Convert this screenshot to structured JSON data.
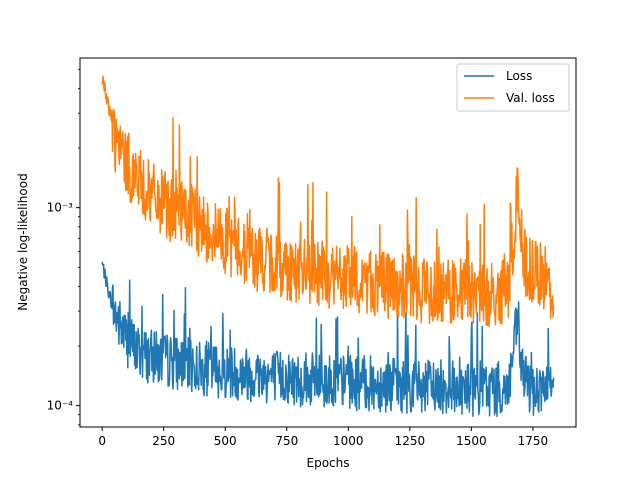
{
  "chart_data": {
    "type": "line",
    "title": "",
    "xlabel": "Epochs",
    "ylabel": "Negative log-likelihood",
    "xlim": [
      -90,
      1925
    ],
    "ylim": [
      7.8e-05,
      0.0057
    ],
    "yscale": "log",
    "grid": false,
    "legend_placement": "top-right",
    "x_ticks": [
      {
        "value": 0,
        "label": "0"
      },
      {
        "value": 250,
        "label": "250"
      },
      {
        "value": 500,
        "label": "500"
      },
      {
        "value": 750,
        "label": "750"
      },
      {
        "value": 1000,
        "label": "1000"
      },
      {
        "value": 1250,
        "label": "1250"
      },
      {
        "value": 1500,
        "label": "1500"
      },
      {
        "value": 1750,
        "label": "1750"
      }
    ],
    "y_ticks": [
      {
        "value": 0.0001,
        "label": "10⁻⁴"
      },
      {
        "value": 0.001,
        "label": "10⁻³"
      }
    ],
    "series": [
      {
        "name": "Loss",
        "color": "#1f77b4",
        "x": [
          0,
          25,
          50,
          75,
          100,
          150,
          200,
          250,
          300,
          350,
          400,
          450,
          500,
          550,
          600,
          650,
          700,
          750,
          800,
          850,
          900,
          950,
          1000,
          1050,
          1100,
          1150,
          1200,
          1250,
          1300,
          1350,
          1400,
          1450,
          1500,
          1550,
          1600,
          1650,
          1690,
          1700,
          1720,
          1750,
          1800,
          1835
        ],
        "y": [
          0.00052,
          0.00038,
          0.00029,
          0.00024,
          0.00021,
          0.00018,
          0.00017,
          0.000165,
          0.00016,
          0.000155,
          0.00015,
          0.000148,
          0.000145,
          0.000142,
          0.00014,
          0.000138,
          0.000136,
          0.000134,
          0.000132,
          0.00013,
          0.000129,
          0.000128,
          0.000127,
          0.000126,
          0.000125,
          0.000124,
          0.000123,
          0.000122,
          0.000121,
          0.00012,
          0.00012,
          0.000119,
          0.000118,
          0.000118,
          0.000117,
          0.000117,
          0.00027,
          0.00016,
          0.000125,
          0.000118,
          0.000115,
          0.000112
        ],
        "noise": 0.28
      },
      {
        "name": "Val. loss",
        "color": "#ff7f0e",
        "x": [
          0,
          25,
          50,
          75,
          100,
          150,
          200,
          250,
          300,
          350,
          400,
          450,
          500,
          550,
          600,
          650,
          700,
          750,
          800,
          850,
          900,
          950,
          1000,
          1050,
          1100,
          1150,
          1200,
          1250,
          1300,
          1350,
          1400,
          1450,
          1500,
          1550,
          1600,
          1650,
          1690,
          1700,
          1720,
          1750,
          1800,
          1835
        ],
        "y": [
          0.0045,
          0.0033,
          0.0022,
          0.0018,
          0.0016,
          0.0013,
          0.0011,
          0.001,
          0.00092,
          0.00085,
          0.00078,
          0.00072,
          0.00066,
          0.0006,
          0.00055,
          0.00052,
          0.0005,
          0.00048,
          0.00046,
          0.00045,
          0.00044,
          0.00043,
          0.00042,
          0.00041,
          0.0004,
          0.00039,
          0.00038,
          0.00038,
          0.00037,
          0.00037,
          0.00036,
          0.00036,
          0.00036,
          0.00035,
          0.00035,
          0.00036,
          0.0012,
          0.0007,
          0.0005,
          0.00045,
          0.00042,
          0.00032
        ],
        "noise": 0.34
      }
    ]
  }
}
